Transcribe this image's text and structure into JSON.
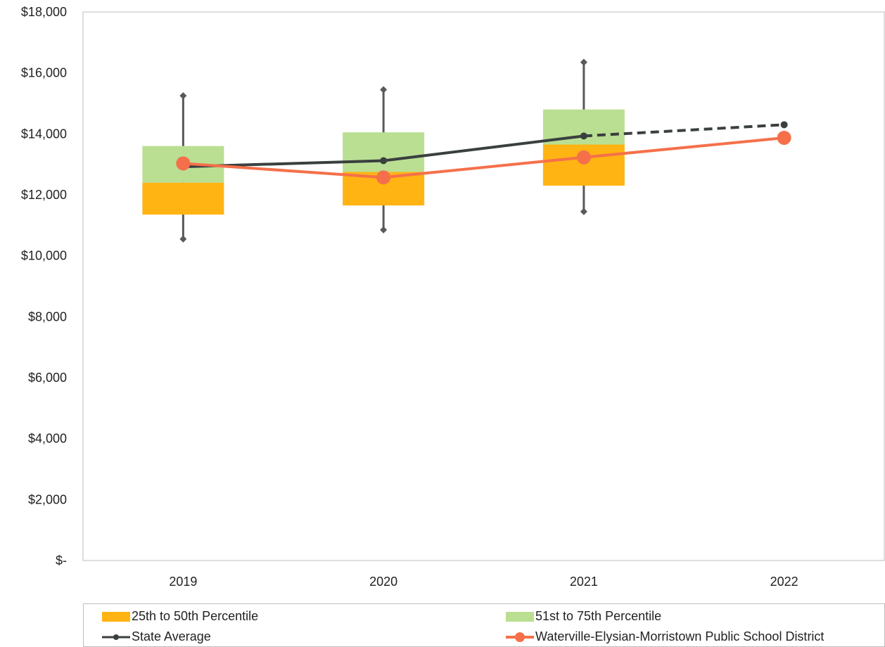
{
  "chart_data": {
    "type": "box",
    "categories": [
      "2019",
      "2020",
      "2021",
      "2022"
    ],
    "y_ticks": [
      "$-",
      "$2,000",
      "$4,000",
      "$6,000",
      "$8,000",
      "$10,000",
      "$12,000",
      "$14,000",
      "$16,000",
      "$18,000"
    ],
    "ylim": [
      0,
      18000
    ],
    "grid": false,
    "boxes": [
      {
        "category": "2019",
        "min": 10550,
        "p25": 11350,
        "p50": 12400,
        "p75": 13600,
        "max": 15250
      },
      {
        "category": "2020",
        "min": 10850,
        "p25": 11650,
        "p50": 12750,
        "p75": 14050,
        "max": 15450
      },
      {
        "category": "2021",
        "min": 11450,
        "p25": 12300,
        "p50": 13650,
        "p75": 14800,
        "max": 16350
      }
    ],
    "series": [
      {
        "name": "State Average",
        "values": [
          12920,
          13120,
          13930,
          14300
        ],
        "dashed_from_index": 2,
        "color": "#3a3f3f"
      },
      {
        "name": "Waterville-Elysian-Morristown Public School District",
        "values": [
          13030,
          12570,
          13230,
          13870
        ],
        "color": "#f5704a"
      }
    ],
    "box_colors": {
      "lower": "#ffb414",
      "upper": "#badf93",
      "whisker": "#595959"
    },
    "legend": {
      "position": "bottom",
      "entries": [
        {
          "label": "25th to 50th Percentile",
          "kind": "swatch",
          "color": "#ffb414"
        },
        {
          "label": "51st to 75th Percentile",
          "kind": "swatch",
          "color": "#badf93"
        },
        {
          "label": "State Average",
          "kind": "line",
          "color": "#3a3f3f"
        },
        {
          "label": "Waterville-Elysian-Morristown Public School District",
          "kind": "line",
          "color": "#f5704a"
        }
      ]
    }
  }
}
